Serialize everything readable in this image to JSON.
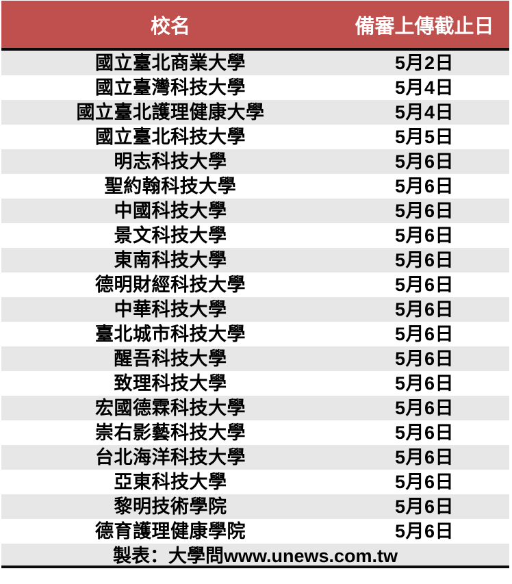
{
  "chart_data": {
    "type": "table",
    "columns": [
      "校名",
      "備審上傳截止日"
    ],
    "rows": [
      [
        "國立臺北商業大學",
        "5月2日"
      ],
      [
        "國立臺灣科技大學",
        "5月4日"
      ],
      [
        "國立臺北護理健康大學",
        "5月4日"
      ],
      [
        "國立臺北科技大學",
        "5月5日"
      ],
      [
        "明志科技大學",
        "5月6日"
      ],
      [
        "聖約翰科技大學",
        "5月6日"
      ],
      [
        "中國科技大學",
        "5月6日"
      ],
      [
        "景文科技大學",
        "5月6日"
      ],
      [
        "東南科技大學",
        "5月6日"
      ],
      [
        "德明財經科技大學",
        "5月6日"
      ],
      [
        "中華科技大學",
        "5月6日"
      ],
      [
        "臺北城市科技大學",
        "5月6日"
      ],
      [
        "醒吾科技大學",
        "5月6日"
      ],
      [
        "致理科技大學",
        "5月6日"
      ],
      [
        "宏國德霖科技大學",
        "5月6日"
      ],
      [
        "崇右影藝科技大學",
        "5月6日"
      ],
      [
        "台北海洋科技大學",
        "5月6日"
      ],
      [
        "亞東科技大學",
        "5月6日"
      ],
      [
        "黎明技術學院",
        "5月6日"
      ],
      [
        "德育護理健康學院",
        "5月6日"
      ]
    ],
    "footer": "製表：大學問www.unews.com.tw",
    "layout_hints": {
      "striped": true,
      "first_body_row_shaded": true,
      "header_text_color": "#ffffff"
    }
  },
  "colors": {
    "header_bg": "#c0504d",
    "header_text": "#ffffff",
    "row_alt_bg": "#e7e7e7",
    "row_bg": "#ffffff",
    "border": "#0a0a0a",
    "text": "#000000"
  }
}
